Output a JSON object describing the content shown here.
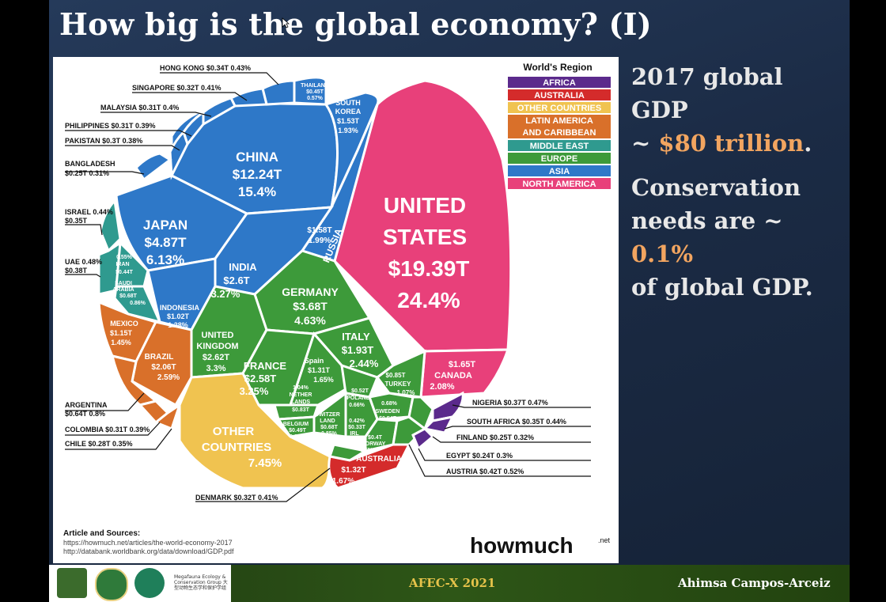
{
  "slide": {
    "title": "How big is the global economy? (I)",
    "side_lines": {
      "gdp_line1": "2017 global GDP",
      "gdp_prefix": "~ ",
      "gdp_value": "$80 trillion",
      "gdp_suffix": ".",
      "cons_line1": "Conservation",
      "cons_line2_prefix": "needs are ~ ",
      "cons_value": "0.1%",
      "cons_line3": "of global GDP."
    },
    "footer": {
      "center": "AFEC-X 2021",
      "right": "Ahimsa Campos-Arceiz",
      "logo_caption": "Megafauna Ecology & Conservation Group 大型动物生态学和保护学组"
    }
  },
  "legend": {
    "title": "World's Region",
    "items": [
      {
        "label": "AFRICA",
        "color": "#5b2a8c"
      },
      {
        "label": "AUSTRALIA",
        "color": "#d42b2b"
      },
      {
        "label": "OTHER COUNTRIES",
        "color": "#f0c350"
      },
      {
        "label": "LATIN AMERICA AND CARIBBEAN",
        "color": "#d9702a"
      },
      {
        "label": "MIDDLE EAST",
        "color": "#2f9a8f"
      },
      {
        "label": "EUROPE",
        "color": "#3d9a3a"
      },
      {
        "label": "ASIA",
        "color": "#2e78c8"
      },
      {
        "label": "NORTH AMERICA",
        "color": "#e8407a"
      }
    ]
  },
  "countries": {
    "usa": {
      "name1": "UNITED",
      "name2": "STATES",
      "value": "$19.39T",
      "pct": "24.4%"
    },
    "china": {
      "name": "CHINA",
      "value": "$12.24T",
      "pct": "15.4%"
    },
    "japan": {
      "name": "JAPAN",
      "value": "$4.87T",
      "pct": "6.13%"
    },
    "india": {
      "name": "INDIA",
      "value": "$2.6T",
      "pct": "3.27%"
    },
    "germany": {
      "name": "GERMANY",
      "value": "$3.68T",
      "pct": "4.63%"
    },
    "uk": {
      "name1": "UNITED",
      "name2": "KINGDOM",
      "value": "$2.62T",
      "pct": "3.3%"
    },
    "france": {
      "name": "FRANCE",
      "value": "$2.58T",
      "pct": "3.25%"
    },
    "italy": {
      "name": "ITALY",
      "value": "$1.93T",
      "pct": "2.44%"
    },
    "russia": {
      "name": "RUSSIA",
      "value": "$1.58T",
      "pct": "1.99%"
    },
    "canada": {
      "value": "$1.65T",
      "name": "CANADA",
      "pct": "2.08%"
    },
    "brazil": {
      "name": "BRAZIL",
      "value": "$2.06T",
      "pct": "2.59%"
    },
    "mexico": {
      "name": "MEXICO",
      "value": "$1.15T",
      "pct": "1.45%"
    },
    "indonesia": {
      "name": "INDONESIA",
      "value": "$1.02T",
      "pct": "1.28%"
    },
    "south_korea": {
      "name1": "SOUTH",
      "name2": "KOREA",
      "value": "$1.53T",
      "pct": "1.93%"
    },
    "thailand": {
      "name": "THAILAND",
      "value": "$0.45T",
      "pct": "0.57%"
    },
    "spain": {
      "name": "Spain",
      "value": "$1.31T",
      "pct": "1.65%"
    },
    "turkey": {
      "value": "$0.85T",
      "name": "TURKEY",
      "pct": "1.07%"
    },
    "netherlands": {
      "pct": "1.04%",
      "name1": "NETHER",
      "name2": "LANDS",
      "value": "$0.83T"
    },
    "poland": {
      "value": "$0.52T",
      "name": "POLAND",
      "pct": "0.66%"
    },
    "sweden": {
      "pct": "0.68%",
      "name": "SWEDEN",
      "value": "$0.54T"
    },
    "belgium": {
      "name": "BELGIUM",
      "value": "$0.49T",
      "pct": "0.62%"
    },
    "switzerland": {
      "name1": "SWITZER",
      "name2": "LAND",
      "value": "$0.68T",
      "pct": "0.85%"
    },
    "ireland": {
      "pct": "0.42%",
      "value": "$0.33T",
      "name": "IRL"
    },
    "norway": {
      "value": "$0.4T",
      "name": "NORWAY",
      "pct": "0.5%"
    },
    "iran": {
      "pct": "0.55%",
      "name": "IRAN",
      "value": "$0.44T"
    },
    "saudi": {
      "name1": "SAUDI",
      "name2": "ARABIA",
      "value": "$0.68T",
      "pct": "0.86%"
    },
    "australia": {
      "name": "AUSTRALIA",
      "value": "$1.32T",
      "pct": "1.67%"
    },
    "other": {
      "name1": "OTHER",
      "name2": "COUNTRIES",
      "pct": "7.45%"
    }
  },
  "callouts": {
    "hong_kong": "HONG KONG $0.34T 0.43%",
    "singapore": "SINGAPORE $0.32T 0.41%",
    "malaysia": "MALAYSIA $0.31T 0.4%",
    "philippines": "PHILIPPINES $0.31T 0.39%",
    "pakistan": "PAKISTAN $0.3T 0.38%",
    "bangladesh1": "BANGLADESH",
    "bangladesh2": "$0.25T 0.31%",
    "israel1": "ISRAEL 0.44%",
    "israel2": "$0.35T",
    "uae1": "UAE 0.48%",
    "uae2": "$0.38T",
    "argentina1": "ARGENTINA",
    "argentina2": "$0.64T 0.8%",
    "colombia": "COLOMBIA $0.31T 0.39%",
    "chile": "CHILE $0.28T 0.35%",
    "denmark": "DENMARK $0.32T 0.41%",
    "nigeria": "NIGERIA $0.37T 0.47%",
    "south_africa": "SOUTH AFRICA $0.35T 0.44%",
    "finland": "FINLAND $0.25T 0.32%",
    "egypt": "EGYPT $0.24T 0.3%",
    "austria": "AUSTRIA $0.42T 0.52%"
  },
  "sources": {
    "heading": "Article and Sources:",
    "line1": "https://howmuch.net/articles/the-world-economy-2017",
    "line2": "http://databank.worldbank.org/data/download/GDP.pdf",
    "brand": "howmuch",
    "brand_suffix": ".net"
  }
}
